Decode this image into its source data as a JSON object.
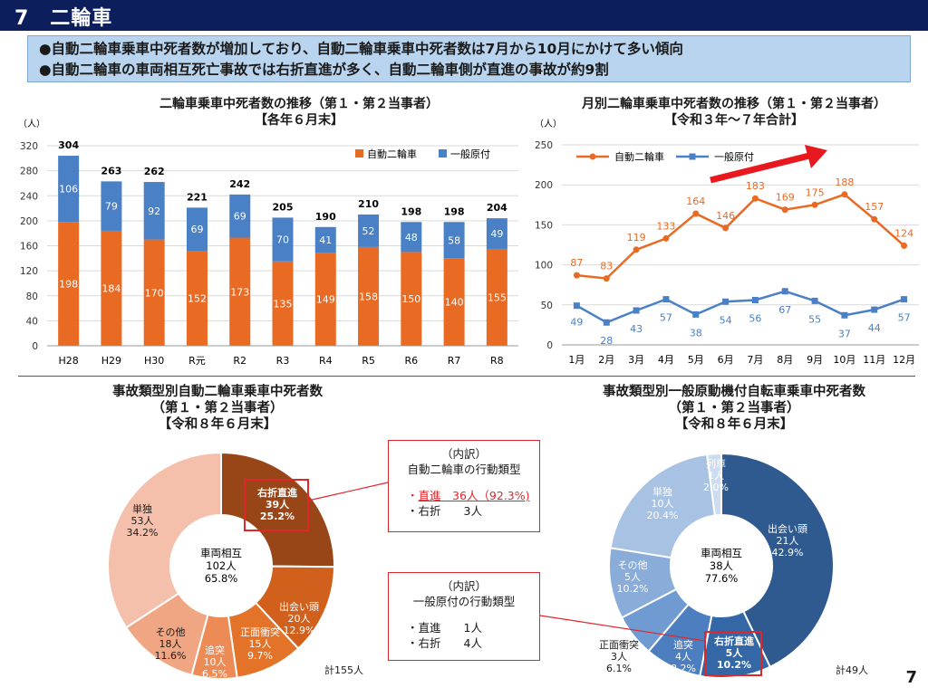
{
  "header": {
    "title": "7　二輪車"
  },
  "summary": [
    "●自動二輪車乗車中死者数が増加しており、自動二輪車乗車中死者数は7月から10月にかけて多い傾向",
    "●自動二輪車の車両相互死亡事故では右折直進が多く、自動二輪車側が直進の事故が約9割"
  ],
  "colors": {
    "auto": "#e86a23",
    "moped": "#4a80c5",
    "arrow": "#e8181f",
    "callout": "#e0262b"
  },
  "chart1": {
    "title1": "二輪車乗車中死者数の推移（第１・第２当事者）",
    "title2": "【各年６月末】",
    "unit": "（人）"
  },
  "chart2": {
    "title1": "月別二輪車乗車中死者数の推移（第１・第２当事者）",
    "title2": "【令和３年～７年合計】",
    "unit": "（人）"
  },
  "chart3": {
    "title1": "事故類型別自動二輪車乗車中死者数",
    "title2": "（第１・第２当事者）",
    "title3": "【令和８年６月末】",
    "center": [
      "車両相互",
      "102人",
      "65.8%"
    ],
    "total": "計155人"
  },
  "chart4": {
    "title1": "事故類型別一般原動機付自転車乗車中死者数",
    "title2": "（第１・第２当事者）",
    "title3": "【令和８年６月末】",
    "center": [
      "車両相互",
      "38人",
      "77.6%"
    ],
    "total": "計49人"
  },
  "callout1": {
    "head1": "（内訳）",
    "head2": "自動二輪車の行動類型",
    "line1_prefix": "・",
    "line1_main": "直進　36人（92.3%)",
    "line2": "・右折　　3人"
  },
  "callout2": {
    "head1": "（内訳）",
    "head2": "一般原付の行動類型",
    "line1": "・直進　　1人",
    "line2": "・右折　　4人"
  },
  "page_number": "7",
  "chart_data": [
    {
      "type": "bar",
      "stacked": true,
      "categories": [
        "H28",
        "H29",
        "H30",
        "R元",
        "R2",
        "R3",
        "R4",
        "R5",
        "R6",
        "R7",
        "R8"
      ],
      "series": [
        {
          "name": "自動二輪車",
          "values": [
            198,
            184,
            170,
            152,
            173,
            135,
            149,
            158,
            150,
            140,
            155
          ]
        },
        {
          "name": "一般原付",
          "values": [
            106,
            79,
            92,
            69,
            69,
            70,
            41,
            52,
            48,
            58,
            49
          ]
        }
      ],
      "totals": [
        304,
        263,
        262,
        221,
        242,
        205,
        190,
        210,
        198,
        198,
        204
      ],
      "ylim": [
        0,
        320
      ],
      "yticks": [
        0,
        40,
        80,
        120,
        160,
        200,
        240,
        280,
        320
      ],
      "legend": "top-right"
    },
    {
      "type": "line",
      "x": [
        "1月",
        "2月",
        "3月",
        "4月",
        "5月",
        "6月",
        "7月",
        "8月",
        "9月",
        "10月",
        "11月",
        "12月"
      ],
      "series": [
        {
          "name": "自動二輪車",
          "values": [
            87,
            83,
            119,
            133,
            164,
            146,
            183,
            169,
            175,
            188,
            157,
            124
          ]
        },
        {
          "name": "一般原付",
          "values": [
            49,
            28,
            43,
            57,
            38,
            54,
            56,
            67,
            55,
            37,
            44,
            57
          ]
        }
      ],
      "ylim": [
        0,
        250
      ],
      "yticks": [
        0,
        50,
        100,
        150,
        200,
        250
      ],
      "legend": "top-left"
    },
    {
      "type": "pie",
      "donut": true,
      "slices": [
        {
          "label": "右折直進",
          "count": "39人",
          "pct": "25.2%",
          "value": 39,
          "color": "#984518"
        },
        {
          "label": "出会い頭",
          "count": "20人",
          "pct": "12.9%",
          "value": 20,
          "color": "#d0601c"
        },
        {
          "label": "正面衝突",
          "count": "15人",
          "pct": "9.7%",
          "value": 15,
          "color": "#e4732a"
        },
        {
          "label": "追突",
          "count": "10人",
          "pct": "6.5%",
          "value": 10,
          "color": "#ec8b55"
        },
        {
          "label": "その他",
          "count": "18人",
          "pct": "11.6%",
          "value": 18,
          "color": "#f0a583"
        },
        {
          "label": "単独",
          "count": "53人",
          "pct": "34.2%",
          "value": 53,
          "color": "#f4c0ac"
        }
      ]
    },
    {
      "type": "pie",
      "donut": true,
      "slices": [
        {
          "label": "出会い頭",
          "count": "21人",
          "pct": "42.9%",
          "value": 21,
          "color": "#2f5a8f"
        },
        {
          "label": "右折直進",
          "count": "5人",
          "pct": "10.2%",
          "value": 5,
          "color": "#3467a6"
        },
        {
          "label": "追突",
          "count": "4人",
          "pct": "8.2%",
          "value": 4,
          "color": "#4d7fc0"
        },
        {
          "label": "正面衝突",
          "count": "3人",
          "pct": "6.1%",
          "value": 3,
          "color": "#6f9ad2"
        },
        {
          "label": "その他",
          "count": "5人",
          "pct": "10.2%",
          "value": 5,
          "color": "#89acd9"
        },
        {
          "label": "単独",
          "count": "10人",
          "pct": "20.4%",
          "value": 10,
          "color": "#a8c2e4"
        },
        {
          "label": "列車",
          "count": "1人",
          "pct": "2.0%",
          "value": 1,
          "color": "#cddcef"
        }
      ]
    }
  ]
}
